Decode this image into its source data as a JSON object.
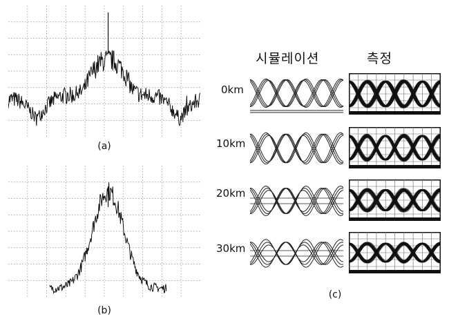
{
  "figure": {
    "captions": {
      "a": "(a)",
      "b": "(b)",
      "c": "(c)"
    },
    "columns": {
      "simulation": "시뮬레이션",
      "measurement": "측정"
    },
    "distances": [
      "0km",
      "10km",
      "20km",
      "30km"
    ]
  }
}
